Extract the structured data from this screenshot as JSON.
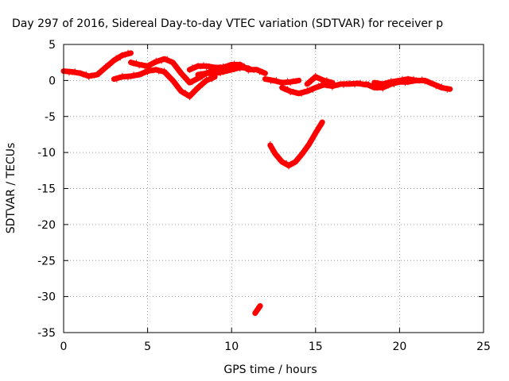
{
  "chart_data": {
    "type": "scatter",
    "title": "Day 297 of 2016, Sidereal Day-to-day VTEC variation (SDTVAR) for receiver p",
    "xlabel": "GPS time / hours",
    "ylabel": "SDTVAR / TECUs",
    "xlim": [
      0,
      25
    ],
    "ylim": [
      -35,
      5
    ],
    "x_ticks": [
      0,
      5,
      10,
      15,
      20,
      25
    ],
    "y_ticks": [
      5,
      0,
      -5,
      -10,
      -15,
      -20,
      -25,
      -30,
      -35
    ],
    "grid": true,
    "legend": "none",
    "series_color": "#ff0000",
    "series": [
      {
        "x": [
          0,
          0.5,
          1.0,
          1.5,
          2.0,
          2.5,
          3.0,
          3.5,
          4.0
        ],
        "y": [
          1.3,
          1.2,
          1.0,
          0.6,
          0.8,
          1.8,
          2.8,
          3.5,
          3.8
        ]
      },
      {
        "x": [
          4.0,
          4.5,
          5.0,
          5.5,
          6.0,
          6.5,
          7.0,
          7.5,
          8.0,
          8.5,
          9.0
        ],
        "y": [
          2.5,
          2.2,
          2.0,
          2.6,
          3.0,
          2.5,
          1.0,
          -0.3,
          0.3,
          1.0,
          1.5
        ]
      },
      {
        "x": [
          3.0,
          3.5,
          4.0,
          4.5,
          5.0,
          5.5,
          6.0,
          6.5,
          7.0,
          7.5,
          8.0,
          8.5,
          9.0
        ],
        "y": [
          0.2,
          0.5,
          0.6,
          0.8,
          1.3,
          1.5,
          1.2,
          0.0,
          -1.5,
          -2.2,
          -1.0,
          0.0,
          0.5
        ]
      },
      {
        "x": [
          7.5,
          8.0,
          8.5,
          9.0,
          9.5,
          10.0,
          10.5,
          11.0,
          11.5,
          12.0
        ],
        "y": [
          1.5,
          2.0,
          2.0,
          1.8,
          1.8,
          2.2,
          2.2,
          1.5,
          1.5,
          1.0
        ]
      },
      {
        "x": [
          8.0,
          8.5,
          9.0,
          9.5,
          10.0,
          10.5,
          11.0
        ],
        "y": [
          0.8,
          1.0,
          1.0,
          1.2,
          1.5,
          1.8,
          1.7
        ]
      },
      {
        "x": [
          12.0,
          12.5,
          13.0,
          13.5,
          14.0
        ],
        "y": [
          0.2,
          0.0,
          -0.3,
          -0.2,
          0.0
        ]
      },
      {
        "x": [
          13.0,
          13.5,
          14.0,
          14.5,
          15.0,
          15.5,
          16.0,
          16.5,
          17.0,
          17.5,
          18.0
        ],
        "y": [
          -1.0,
          -1.5,
          -1.8,
          -1.5,
          -1.0,
          -0.6,
          -0.8,
          -0.5,
          -0.5,
          -0.4,
          -0.6
        ]
      },
      {
        "x": [
          14.5,
          15.0,
          15.5,
          16.0
        ],
        "y": [
          -0.5,
          0.5,
          0.0,
          -0.3
        ]
      },
      {
        "x": [
          18.0,
          18.5,
          19.0,
          19.5,
          20.0,
          20.5,
          21.0,
          21.5,
          22.0,
          22.5,
          23.0
        ],
        "y": [
          -0.5,
          -1.0,
          -1.0,
          -0.5,
          -0.2,
          -0.2,
          0.0,
          0.0,
          -0.5,
          -1.0,
          -1.2
        ]
      },
      {
        "x": [
          18.5,
          19.0,
          19.5,
          20.0,
          20.5,
          21.0
        ],
        "y": [
          -0.3,
          -0.5,
          -0.2,
          0.0,
          0.2,
          0.0
        ]
      },
      {
        "x": [
          12.3,
          12.6,
          13.0,
          13.4,
          13.8,
          14.2,
          14.6,
          15.0,
          15.4
        ],
        "y": [
          -9.0,
          -10.2,
          -11.3,
          -11.8,
          -11.3,
          -10.2,
          -8.9,
          -7.3,
          -5.8
        ]
      },
      {
        "x": [
          11.4,
          11.7
        ],
        "y": [
          -32.3,
          -31.3
        ]
      }
    ]
  }
}
